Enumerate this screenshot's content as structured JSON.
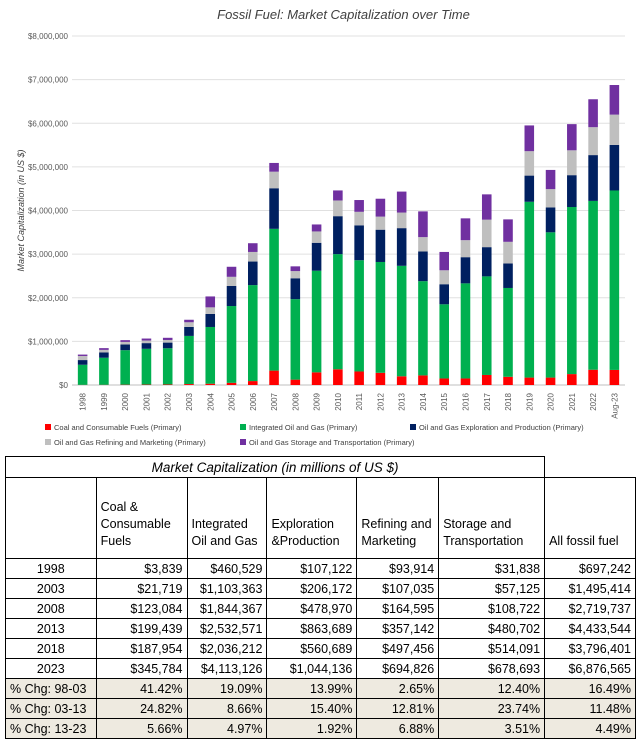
{
  "chart_data": {
    "type": "bar",
    "stacked": true,
    "title": "Fossil Fuel: Market Capitalization over Time",
    "xlabel": "",
    "ylabel": "Market Capitalization (in US $)",
    "ylim": [
      0,
      8000000
    ],
    "yticks": [
      0,
      1000000,
      2000000,
      3000000,
      4000000,
      5000000,
      6000000,
      7000000,
      8000000
    ],
    "ytick_labels": [
      "$0",
      "$1,000,000",
      "$2,000,000",
      "$3,000,000",
      "$4,000,000",
      "$5,000,000",
      "$6,000,000",
      "$7,000,000",
      "$8,000,000"
    ],
    "grid": true,
    "categories": [
      "1998",
      "1999",
      "2000",
      "2001",
      "2002",
      "2003",
      "2004",
      "2005",
      "2006",
      "2007",
      "2008",
      "2009",
      "2010",
      "2011",
      "2012",
      "2013",
      "2014",
      "2015",
      "2016",
      "2017",
      "2018",
      "2019",
      "2020",
      "2021",
      "2022",
      "Aug-23"
    ],
    "series": [
      {
        "name": "Coal and Consumable Fuels (Primary)",
        "color": "#ff0000",
        "values": [
          3839,
          5000,
          8000,
          10000,
          12000,
          21719,
          30000,
          50000,
          90000,
          330000,
          123084,
          290000,
          360000,
          310000,
          280000,
          199439,
          220000,
          150000,
          150000,
          230000,
          187954,
          170000,
          170000,
          250000,
          350000,
          345784
        ]
      },
      {
        "name": "Integrated Oil and Gas (Primary)",
        "color": "#00b050",
        "values": [
          460529,
          620000,
          790000,
          820000,
          830000,
          1103363,
          1300000,
          1760000,
          2200000,
          3250000,
          1844367,
          2330000,
          2640000,
          2550000,
          2540000,
          2532571,
          2160000,
          1700000,
          2180000,
          2260000,
          2036212,
          4030000,
          3330000,
          3830000,
          3870000,
          4113126
        ]
      },
      {
        "name": "Oil and Gas Exploration and Production (Primary)",
        "color": "#002060",
        "values": [
          107122,
          120000,
          130000,
          130000,
          130000,
          206172,
          300000,
          460000,
          540000,
          930000,
          478970,
          640000,
          870000,
          800000,
          740000,
          863689,
          680000,
          460000,
          600000,
          670000,
          560689,
          600000,
          570000,
          730000,
          1050000,
          1044136
        ]
      },
      {
        "name": "Oil and Gas Refining and Marketing (Primary)",
        "color": "#bfbfbf",
        "values": [
          93914,
          60000,
          60000,
          60000,
          60000,
          107035,
          150000,
          210000,
          220000,
          380000,
          164595,
          260000,
          360000,
          310000,
          300000,
          357142,
          330000,
          320000,
          390000,
          630000,
          497456,
          560000,
          420000,
          570000,
          640000,
          694826
        ]
      },
      {
        "name": "Oil and Gas Storage and Transportation (Primary)",
        "color": "#7030a0",
        "values": [
          31838,
          40000,
          40000,
          45000,
          50000,
          57125,
          250000,
          230000,
          200000,
          200000,
          108722,
          160000,
          230000,
          270000,
          410000,
          480702,
          590000,
          420000,
          500000,
          580000,
          514091,
          590000,
          440000,
          600000,
          640000,
          678693
        ]
      }
    ]
  },
  "table": {
    "caption": "Market Capitalization (in millions of US $)",
    "headers": [
      "Coal & Consumable Fuels",
      "Integrated Oil and Gas",
      "Exploration &Production",
      "Refining and Marketing",
      "Storage and Transportation",
      "All fossil fuel"
    ],
    "rows": [
      {
        "year": "1998",
        "cells": [
          "$3,839",
          "$460,529",
          "$107,122",
          "$93,914",
          "$31,838",
          "$697,242"
        ]
      },
      {
        "year": "2003",
        "cells": [
          "$21,719",
          "$1,103,363",
          "$206,172",
          "$107,035",
          "$57,125",
          "$1,495,414"
        ]
      },
      {
        "year": "2008",
        "cells": [
          "$123,084",
          "$1,844,367",
          "$478,970",
          "$164,595",
          "$108,722",
          "$2,719,737"
        ]
      },
      {
        "year": "2013",
        "cells": [
          "$199,439",
          "$2,532,571",
          "$863,689",
          "$357,142",
          "$480,702",
          "$4,433,544"
        ]
      },
      {
        "year": "2018",
        "cells": [
          "$187,954",
          "$2,036,212",
          "$560,689",
          "$497,456",
          "$514,091",
          "$3,796,401"
        ]
      },
      {
        "year": "2023",
        "cells": [
          "$345,784",
          "$4,113,126",
          "$1,044,136",
          "$694,826",
          "$678,693",
          "$6,876,565"
        ]
      }
    ],
    "pct_rows": [
      {
        "label": "% Chg: 98-03",
        "cells": [
          "41.42%",
          "19.09%",
          "13.99%",
          "2.65%",
          "12.40%",
          "16.49%"
        ]
      },
      {
        "label": "% Chg: 03-13",
        "cells": [
          "24.82%",
          "8.66%",
          "15.40%",
          "12.81%",
          "23.74%",
          "11.48%"
        ]
      },
      {
        "label": "% Chg: 13-23",
        "cells": [
          "5.66%",
          "4.97%",
          "1.92%",
          "6.88%",
          "3.51%",
          "4.49%"
        ]
      }
    ]
  }
}
